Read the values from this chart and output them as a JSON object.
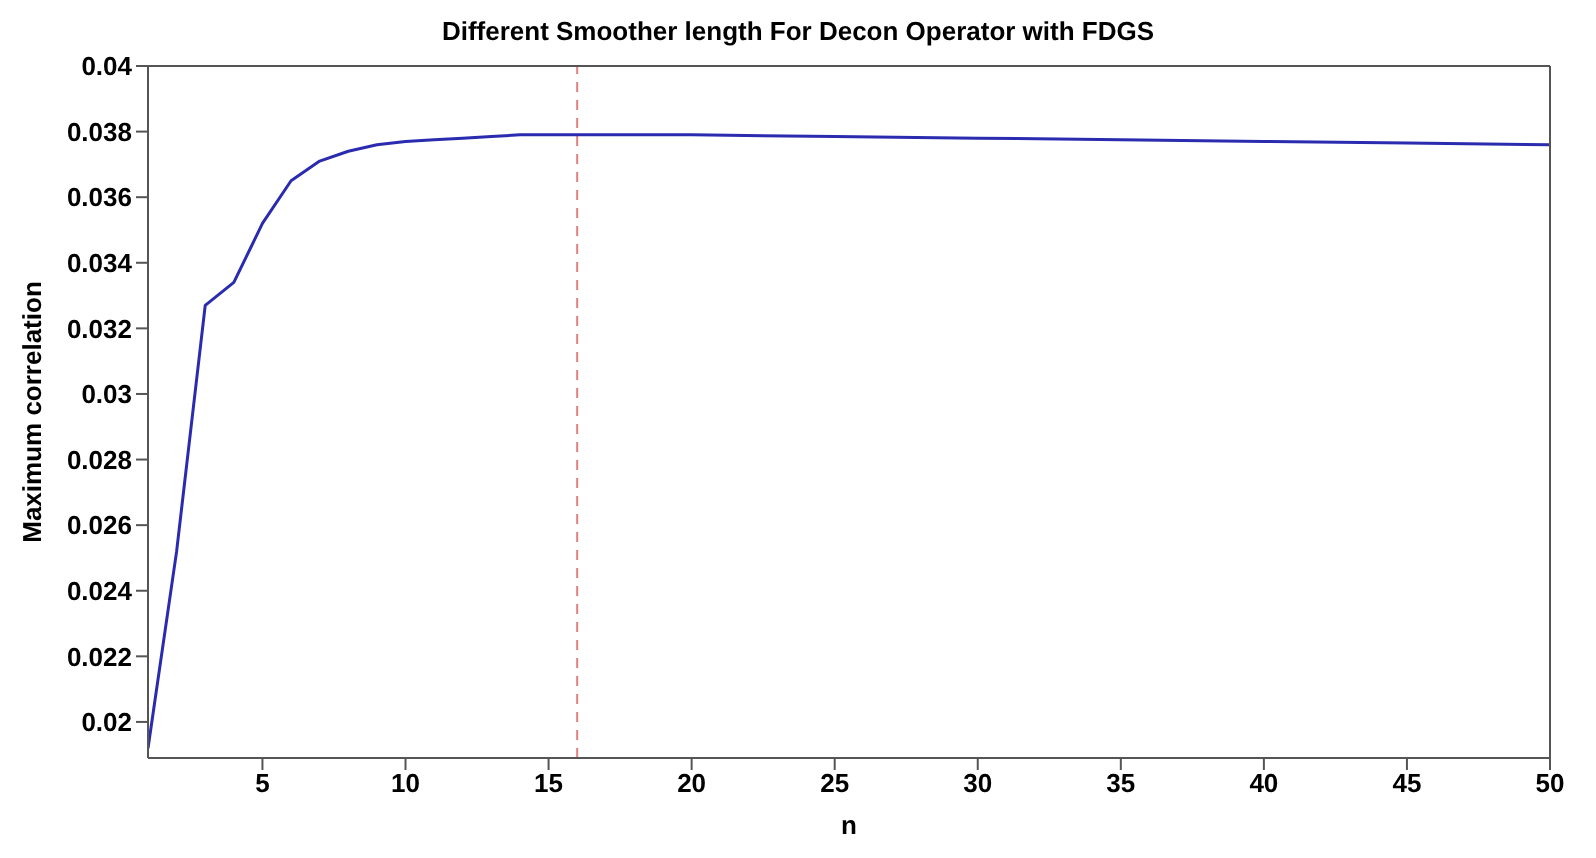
{
  "chart_data": {
    "type": "line",
    "title": "Different Smoother length For Decon Operator with FDGS",
    "xlabel": "n",
    "ylabel": "Maximum correlation",
    "x": [
      1,
      2,
      3,
      4,
      5,
      6,
      7,
      8,
      9,
      10,
      11,
      12,
      13,
      14,
      15,
      16,
      17,
      18,
      19,
      20,
      25,
      30,
      35,
      40,
      45,
      50
    ],
    "series": [
      {
        "color": "#2b2bb0",
        "values": [
          0.0192,
          0.0252,
          0.0327,
          0.0334,
          0.0352,
          0.0365,
          0.0371,
          0.0374,
          0.0376,
          0.0377,
          0.03775,
          0.0378,
          0.03785,
          0.0379,
          0.0379,
          0.0379,
          0.0379,
          0.0379,
          0.0379,
          0.0379,
          0.03785,
          0.0378,
          0.03775,
          0.0377,
          0.03765,
          0.0376
        ]
      }
    ],
    "xlim": [
      1,
      50
    ],
    "xticks": [
      5,
      10,
      15,
      20,
      25,
      30,
      35,
      40,
      45,
      50
    ],
    "ylim": [
      0.0189,
      0.04
    ],
    "yticks": [
      0.02,
      0.022,
      0.024,
      0.026,
      0.028,
      0.03,
      0.032,
      0.034,
      0.036,
      0.038,
      0.04
    ],
    "ref_lines": [
      {
        "axis": "x",
        "value": 16,
        "color": "#e08080",
        "line_style": "dashed"
      }
    ],
    "grid": false,
    "marker": "none",
    "line_style": "solid"
  }
}
